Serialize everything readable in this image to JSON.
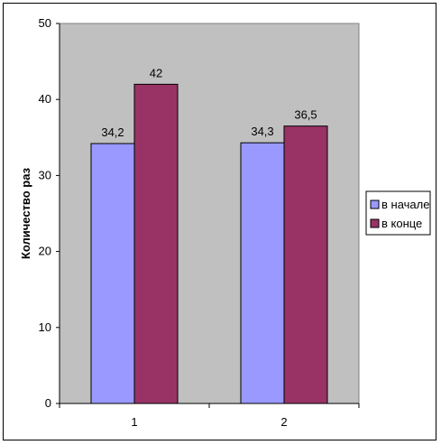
{
  "chart_data": {
    "type": "bar",
    "categories": [
      "1",
      "2"
    ],
    "series": [
      {
        "name": "в начале",
        "values": [
          34.2,
          34.3
        ],
        "labels": [
          "34,2",
          "34,3"
        ],
        "color": "#9999ff"
      },
      {
        "name": "в конце",
        "values": [
          42,
          36.5
        ],
        "labels": [
          "42",
          "36,5"
        ],
        "color": "#993366"
      }
    ],
    "ylabel": "Количество раз",
    "ylim": [
      0,
      50
    ],
    "yticks": [
      0,
      10,
      20,
      30,
      40,
      50
    ],
    "plot_background": "#c0c0c0",
    "grid": false,
    "legend_position": "right"
  }
}
